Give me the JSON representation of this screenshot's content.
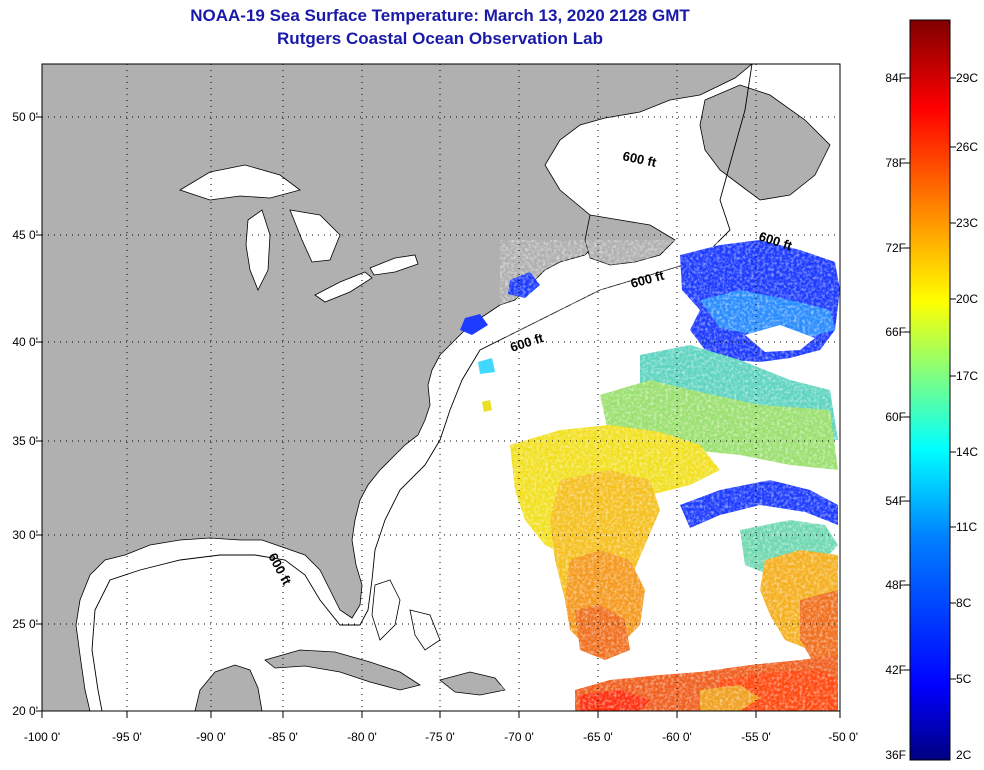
{
  "title": "NOAA-19 Sea Surface Temperature:  March 13, 2020 2128 GMT",
  "subtitle": "Rutgers Coastal Ocean Observation Lab",
  "map": {
    "lon_range": [
      -100,
      -50
    ],
    "lat_range": [
      20,
      52
    ],
    "lat_labels": [
      "50 0'",
      "45 0'",
      "40 0'",
      "35 0'",
      "30 0'",
      "25 0'",
      "20 0'"
    ],
    "lon_labels": [
      "-100 0'",
      "-95 0'",
      "-90 0'",
      "-85 0'",
      "-80 0'",
      "-75 0'",
      "-70 0'",
      "-65 0'",
      "-60 0'",
      "-55 0'",
      "-50 0'"
    ],
    "land_color": "#b0b0b0",
    "ocean_color": "#ffffff",
    "contour_labels": [
      "600 ft",
      "600 ft",
      "600 ft",
      "600 ft",
      "600 ft"
    ]
  },
  "colorbar": {
    "min_c": 2,
    "max_c": 31,
    "fahrenheit_labels": [
      "84F",
      "78F",
      "72F",
      "66F",
      "60F",
      "54F",
      "48F",
      "42F",
      "36F"
    ],
    "celsius_labels": [
      "29C",
      "26C",
      "23C",
      "20C",
      "17C",
      "14C",
      "11C",
      "8C",
      "5C",
      "2C"
    ],
    "colors": [
      "#000080",
      "#0000ff",
      "#0080ff",
      "#00ffff",
      "#80ff80",
      "#ffff00",
      "#ff8000",
      "#ff0000",
      "#800000"
    ]
  }
}
